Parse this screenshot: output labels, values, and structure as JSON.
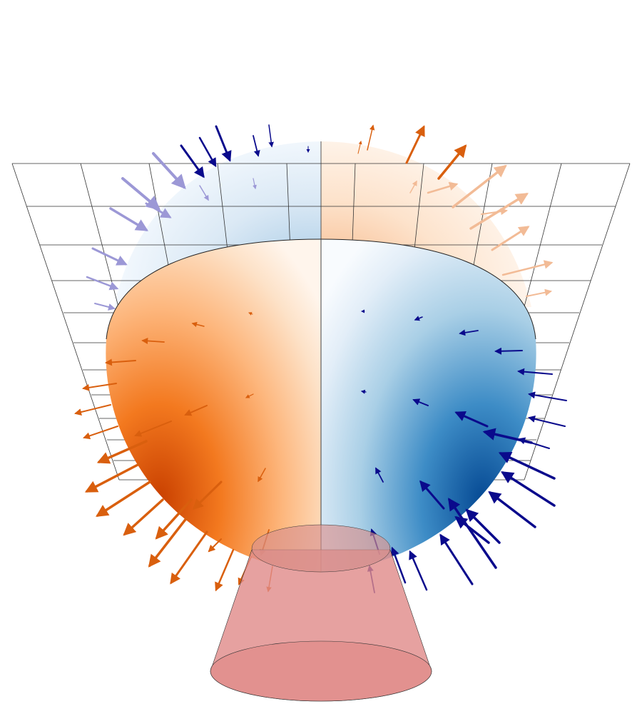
{
  "figure": {
    "description_colors": {
      "orange_dark": "#d94801",
      "orange_mid": "#fd8d3c",
      "orange_light": "#fdd0a2",
      "blue_dark": "#08519c",
      "blue_mid": "#4a98c9",
      "blue_light": "#c6dbef",
      "arrow_orange": "#d95f0e",
      "arrow_orange_faint": "#f0b892",
      "arrow_blue": "#0a0a8c",
      "arrow_lavender": "#9c98d6",
      "cone_fill": "#e08a88",
      "grid_line": "#333333"
    }
  }
}
